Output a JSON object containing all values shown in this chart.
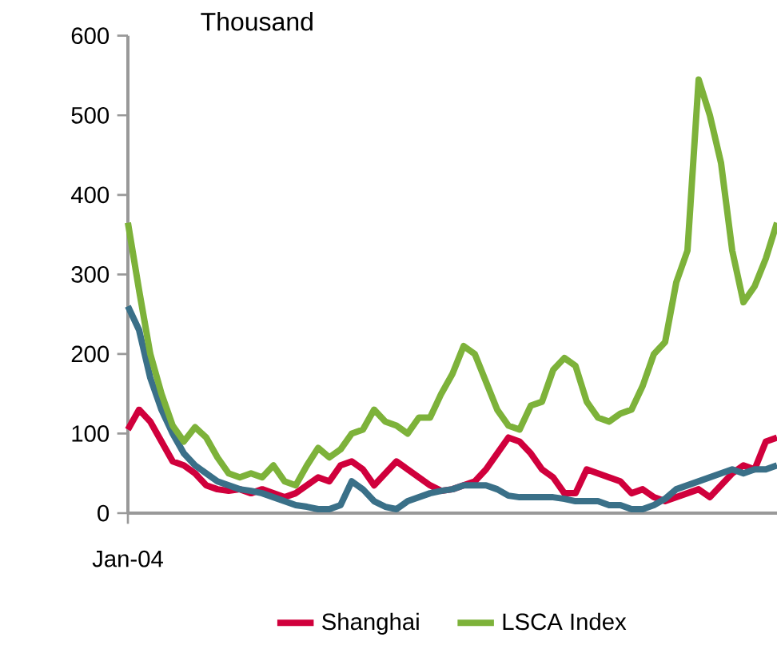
{
  "chart_data": {
    "type": "line",
    "ylabel": "Thousand",
    "categories": [
      "Jan-04",
      null,
      null,
      null,
      null,
      null,
      null,
      null,
      null,
      null,
      null,
      null,
      null,
      null,
      null,
      null,
      null,
      null,
      null,
      null,
      null,
      null,
      null,
      null,
      null,
      null,
      null,
      null,
      null,
      null,
      null,
      null,
      null,
      null,
      null,
      null,
      null,
      null,
      null,
      null,
      null,
      null,
      null,
      null,
      null,
      null,
      null,
      null,
      null,
      null,
      null,
      null,
      null,
      null,
      null,
      null,
      null,
      null,
      null
    ],
    "series": [
      {
        "name": "Shanghai",
        "color": "#d0003c",
        "values": [
          105,
          130,
          115,
          90,
          65,
          60,
          50,
          35,
          30,
          28,
          30,
          25,
          30,
          25,
          20,
          25,
          35,
          45,
          40,
          60,
          65,
          55,
          35,
          50,
          65,
          55,
          45,
          35,
          28,
          30,
          35,
          40,
          55,
          75,
          95,
          90,
          75,
          55,
          45,
          25,
          25,
          55,
          50,
          45,
          40,
          25,
          30,
          20,
          15,
          20,
          25,
          30,
          20,
          35,
          50,
          60,
          55,
          90,
          95
        ]
      },
      {
        "color": "#3a7088",
        "values": [
          260,
          230,
          170,
          130,
          100,
          75,
          60,
          50,
          40,
          35,
          30,
          28,
          25,
          20,
          15,
          10,
          8,
          5,
          5,
          10,
          40,
          30,
          15,
          8,
          5,
          15,
          20,
          25,
          28,
          30,
          35,
          35,
          35,
          30,
          22,
          20,
          20,
          20,
          20,
          18,
          15,
          15,
          15,
          10,
          10,
          5,
          5,
          10,
          18,
          30,
          35,
          40,
          45,
          50,
          55,
          50,
          55,
          55,
          60
        ]
      },
      {
        "name": "LSCA Index",
        "color": "#7db23a",
        "values": [
          365,
          280,
          200,
          150,
          110,
          90,
          108,
          95,
          70,
          50,
          45,
          50,
          45,
          60,
          40,
          35,
          60,
          82,
          70,
          80,
          100,
          105,
          130,
          115,
          110,
          100,
          120,
          120,
          150,
          175,
          210,
          200,
          165,
          130,
          110,
          105,
          135,
          140,
          180,
          195,
          185,
          140,
          120,
          115,
          125,
          130,
          160,
          200,
          215,
          290,
          330,
          545,
          500,
          440,
          330,
          265,
          285,
          320,
          365
        ]
      }
    ],
    "ylim": [
      0,
      600
    ],
    "yticks": [
      0,
      100,
      200,
      300,
      400,
      500,
      600
    ],
    "legend": "bottom",
    "line_style": "solid",
    "marker": "none"
  }
}
